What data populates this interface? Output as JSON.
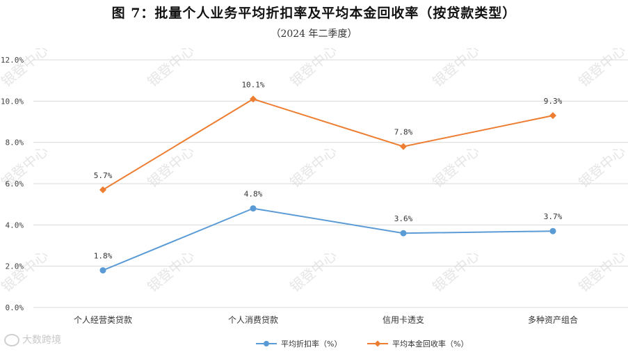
{
  "title": "图 7：批量个人业务平均折扣率及平均本金回收率（按贷款类型）",
  "subtitle": "（2024 年二季度）",
  "watermark": "银登中心",
  "brand": "大数跨境",
  "chart_data": {
    "type": "line",
    "categories": [
      "个人经营类贷款",
      "个人消费贷款",
      "信用卡透支",
      "多种资产组合"
    ],
    "series": [
      {
        "name": "平均折扣率（%）",
        "values": [
          1.8,
          4.8,
          3.6,
          3.7
        ],
        "labels": [
          "1.8%",
          "4.8%",
          "3.6%",
          "3.7%"
        ],
        "color": "#5b9bd5"
      },
      {
        "name": "平均本金回收率（%）",
        "values": [
          5.7,
          10.1,
          7.8,
          9.3
        ],
        "labels": [
          "5.7%",
          "10.1%",
          "7.8%",
          "9.3%"
        ],
        "color": "#ed7d31"
      }
    ],
    "ylim": [
      0,
      12
    ],
    "yticks": [
      0,
      2,
      4,
      6,
      8,
      10,
      12
    ],
    "ytick_labels": [
      "0.0%",
      "2.0%",
      "4.0%",
      "6.0%",
      "8.0%",
      "10.0%",
      "12.0%"
    ],
    "grid": true,
    "legend": "bottom-center",
    "axis_color": "#d9d9d9"
  }
}
